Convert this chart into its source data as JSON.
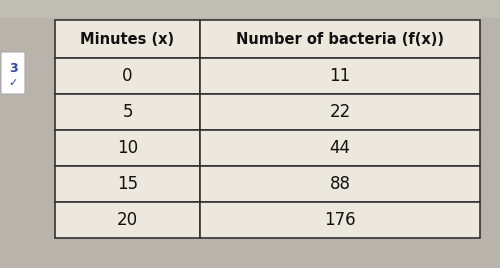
{
  "col1_header": "Minutes (x)",
  "col2_header": "Number of bacteria (f(x))",
  "rows": [
    [
      "0",
      "11"
    ],
    [
      "5",
      "22"
    ],
    [
      "10",
      "44"
    ],
    [
      "15",
      "88"
    ],
    [
      "20",
      "176"
    ]
  ],
  "table_bg": "#ede8dd",
  "border_color": "#333333",
  "text_color": "#111111",
  "page_bg": "#b8b4ac",
  "top_bar_bg": "#c0bdb5",
  "side_label": "3",
  "side_check": "✓",
  "side_label_color": "#3344aa",
  "header_fontsize": 10.5,
  "data_fontsize": 12
}
